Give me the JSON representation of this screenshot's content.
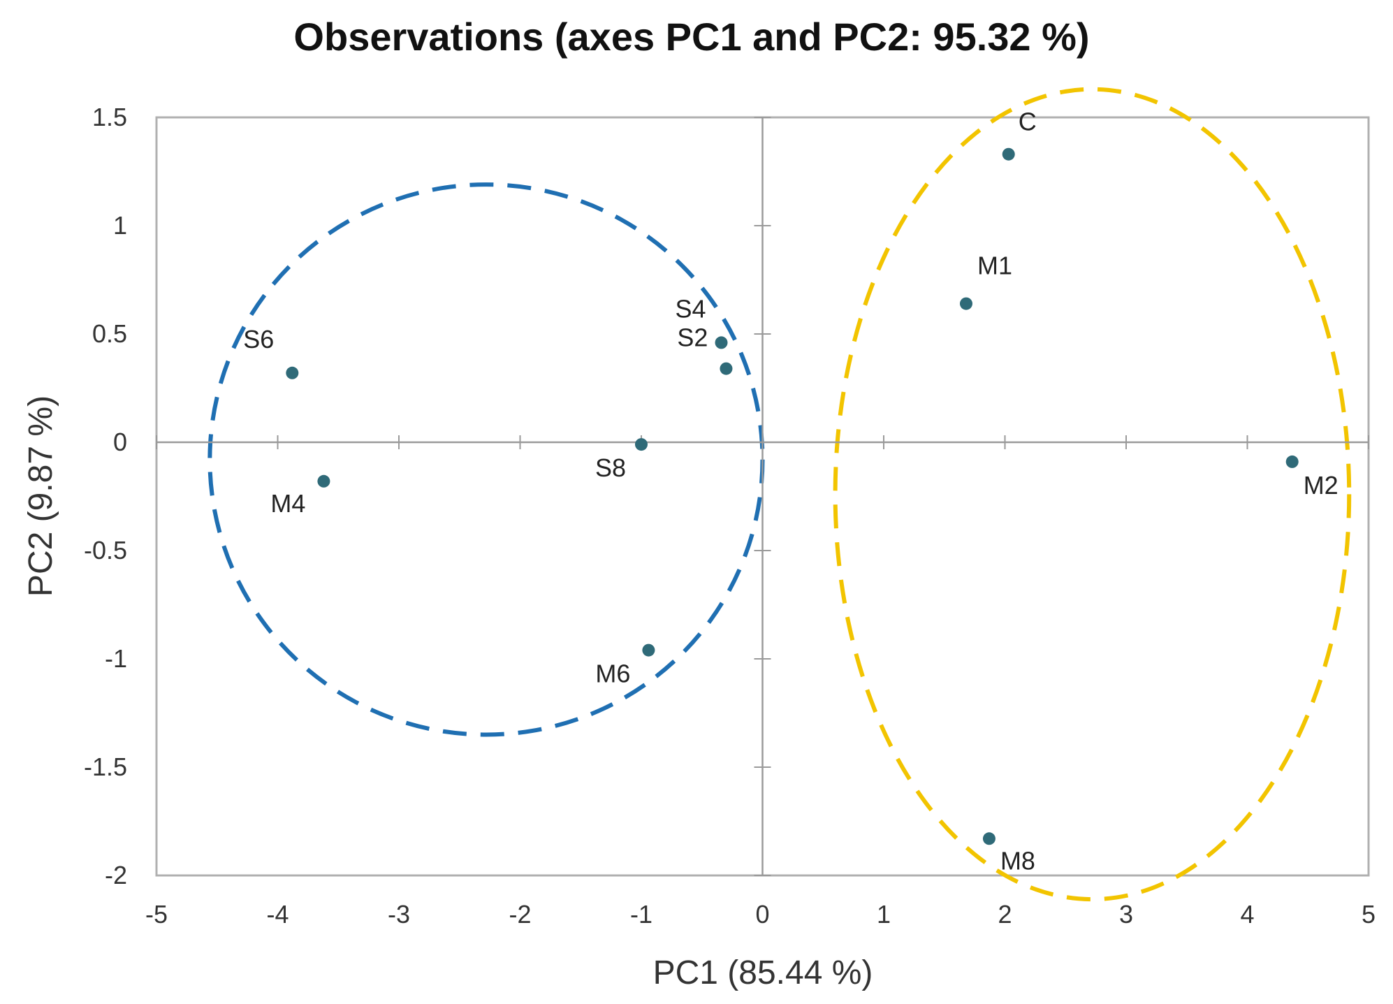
{
  "chart_data": {
    "type": "scatter",
    "title": "Observations (axes PC1 and PC2: 95.32 %)",
    "xlabel": "PC1 (85.44 %)",
    "ylabel": "PC2 (9.87 %)",
    "xlim": [
      -5,
      5
    ],
    "ylim": [
      -2,
      1.5
    ],
    "xticks": [
      -5,
      -4,
      -3,
      -2,
      -1,
      0,
      1,
      2,
      3,
      4,
      5
    ],
    "yticks": [
      -2,
      -1.5,
      -1,
      -0.5,
      0,
      0.5,
      1,
      1.5
    ],
    "xtick_labels": [
      "-5",
      "-4",
      "-3",
      "-2",
      "-1",
      "0",
      "1",
      "2",
      "3",
      "4",
      "5"
    ],
    "ytick_labels": [
      "-2",
      "-1.5",
      "-1",
      "-0.5",
      "0",
      "0.5",
      "1",
      "1.5"
    ],
    "points": [
      {
        "label": "C",
        "x": 2.03,
        "y": 1.33
      },
      {
        "label": "M1",
        "x": 1.68,
        "y": 0.64
      },
      {
        "label": "M2",
        "x": 4.37,
        "y": -0.09
      },
      {
        "label": "M8",
        "x": 1.87,
        "y": -1.83
      },
      {
        "label": "S6",
        "x": -3.88,
        "y": 0.32
      },
      {
        "label": "M4",
        "x": -3.62,
        "y": -0.18
      },
      {
        "label": "S4",
        "x": -0.34,
        "y": 0.46
      },
      {
        "label": "S2",
        "x": -0.3,
        "y": 0.34
      },
      {
        "label": "S8",
        "x": -1.0,
        "y": -0.01
      },
      {
        "label": "M6",
        "x": -0.94,
        "y": -0.96
      }
    ],
    "groups": [
      {
        "name": "blue-group",
        "color": "#1f6fb2",
        "cx": -2.28,
        "cy": -0.08,
        "rx": 2.28,
        "ry": 1.27
      },
      {
        "name": "yellow-group",
        "color": "#f2c400",
        "cx": 2.72,
        "cy": -0.24,
        "rx": 2.12,
        "ry": 1.87
      }
    ],
    "point_color": "#2f6a78",
    "grid": false
  }
}
